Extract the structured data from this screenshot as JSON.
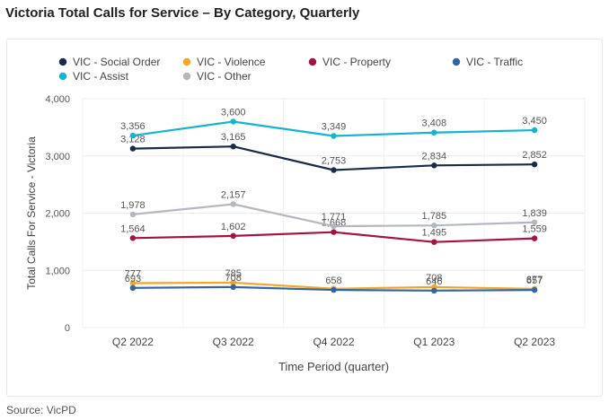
{
  "page_title": "Victoria Total Calls for Service – By Category, Quarterly",
  "source": "Source: VicPD",
  "chart_data": {
    "type": "line",
    "xlabel": "Time Period (quarter)",
    "ylabel": "Total Calls For Service - Victoria",
    "categories": [
      "Q2 2022",
      "Q3 2022",
      "Q4 2022",
      "Q1 2023",
      "Q2 2023"
    ],
    "ylim": [
      0,
      4000
    ],
    "yticks": [
      0,
      1000,
      2000,
      3000,
      4000
    ],
    "ytick_labels": [
      "0",
      "1,000",
      "2,000",
      "3,000",
      "4,000"
    ],
    "grid": true,
    "legend_position": "top-left",
    "series": [
      {
        "name": "VIC - Social Order",
        "color": "#1b2a47",
        "values": [
          3128,
          3165,
          2753,
          2834,
          2852
        ],
        "labels": [
          "3,128",
          "3,165",
          "2,753",
          "2,834",
          "2,852"
        ]
      },
      {
        "name": "VIC - Violence",
        "color": "#f2a626",
        "values": [
          777,
          785,
          679,
          708,
          677
        ],
        "labels": [
          "777",
          "785",
          "",
          "708",
          "677"
        ]
      },
      {
        "name": "VIC - Property",
        "color": "#a3153e",
        "values": [
          1564,
          1602,
          1668,
          1495,
          1559
        ],
        "labels": [
          "1,564",
          "1,602",
          "1,668",
          "1,495",
          "1,559"
        ]
      },
      {
        "name": "VIC - Traffic",
        "color": "#3465a0",
        "values": [
          693,
          708,
          658,
          646,
          657
        ],
        "labels": [
          "693",
          "708",
          "658",
          "646",
          "657"
        ]
      },
      {
        "name": "VIC - Assist",
        "color": "#16b3cf",
        "values": [
          3356,
          3600,
          3349,
          3408,
          3450
        ],
        "labels": [
          "3,356",
          "3,600",
          "3,349",
          "3,408",
          "3,450"
        ]
      },
      {
        "name": "VIC - Other",
        "color": "#b3b8c0",
        "values": [
          1978,
          2157,
          1771,
          1785,
          1839
        ],
        "labels": [
          "1,978",
          "2,157",
          "1,771",
          "1,785",
          "1,839"
        ]
      }
    ]
  }
}
